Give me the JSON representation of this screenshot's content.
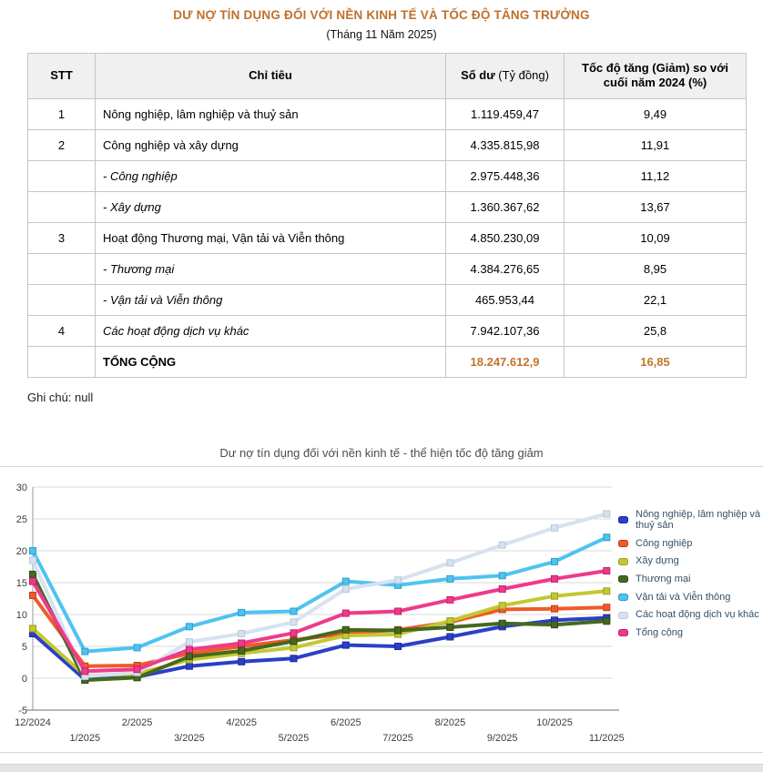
{
  "page": {
    "title": "DƯ NỢ TÍN DỤNG ĐỐI VỚI NỀN KINH TẾ VÀ TỐC ĐỘ TĂNG TRƯỞNG",
    "subtitle": "(Tháng 11 Năm 2025)",
    "note": "Ghi chú: null",
    "title_color": "#c0702b"
  },
  "table": {
    "headers": {
      "stt": "STT",
      "indicator": "Chỉ tiêu",
      "balance_bold": "Số dư",
      "balance_unit": "(Tỷ đồng)",
      "rate": "Tốc độ tăng (Giảm) so với cuối năm 2024 (%)"
    },
    "total_value_color": "#c1762b",
    "rows": [
      {
        "stt": "1",
        "label": "Nông nghiệp, lâm nghiệp và thuỷ sản",
        "balance": "1.119.459,47",
        "rate": "9,49",
        "style": "normal"
      },
      {
        "stt": "2",
        "label": "Công nghiệp và xây dựng",
        "balance": "4.335.815,98",
        "rate": "11,91",
        "style": "normal"
      },
      {
        "stt": "",
        "label": "- Công nghiệp",
        "balance": "2.975.448,36",
        "rate": "11,12",
        "style": "sub"
      },
      {
        "stt": "",
        "label": "- Xây dựng",
        "balance": "1.360.367,62",
        "rate": "13,67",
        "style": "sub"
      },
      {
        "stt": "3",
        "label": "Hoạt động Thương mại, Vận tải và Viễn thông",
        "balance": "4.850.230,09",
        "rate": "10,09",
        "style": "normal"
      },
      {
        "stt": "",
        "label": "- Thương mại",
        "balance": "4.384.276,65",
        "rate": "8,95",
        "style": "sub"
      },
      {
        "stt": "",
        "label": "- Vận tải và Viễn thông",
        "balance": "465.953,44",
        "rate": "22,1",
        "style": "sub"
      },
      {
        "stt": "4",
        "label": "Các hoạt động dịch vụ khác",
        "balance": "7.942.107,36",
        "rate": "25,8",
        "style": "sub"
      },
      {
        "stt": "",
        "label": "TỔNG CỘNG",
        "balance": "18.247.612,9",
        "rate": "16,85",
        "style": "total"
      }
    ]
  },
  "chart_data": {
    "type": "line",
    "title": "Dư nợ tín dụng đối với nền kinh tế - thể hiện tốc độ tăng giảm",
    "x": [
      "12/2024",
      "1/2025",
      "2/2025",
      "3/2025",
      "4/2025",
      "5/2025",
      "6/2025",
      "7/2025",
      "8/2025",
      "9/2025",
      "10/2025",
      "11/2025"
    ],
    "ylim": [
      -5,
      30
    ],
    "yticks": [
      30,
      25,
      20,
      15,
      10,
      5,
      0,
      -5
    ],
    "grid": true,
    "legend_position": "right",
    "series": [
      {
        "name": "Nông nghiệp, lâm nghiệp và thuỷ sản",
        "color": "#2b3fc8",
        "edge": "#1b2b96",
        "values": [
          7.0,
          -0.2,
          0.2,
          1.9,
          2.6,
          3.1,
          5.2,
          5.0,
          6.5,
          8.1,
          9.1,
          9.49
        ]
      },
      {
        "name": "Công nghiệp",
        "color": "#f05a28",
        "edge": "#c2401a",
        "values": [
          13.0,
          1.9,
          2.0,
          3.9,
          5.0,
          6.0,
          7.0,
          7.6,
          8.8,
          10.8,
          10.9,
          11.12
        ]
      },
      {
        "name": "Xây dựng",
        "color": "#c3c832",
        "edge": "#9aa01f",
        "values": [
          7.8,
          0.4,
          0.7,
          2.9,
          3.9,
          4.8,
          6.7,
          6.9,
          9.0,
          11.4,
          12.9,
          13.67
        ]
      },
      {
        "name": "Thương mại",
        "color": "#45691e",
        "edge": "#2f4a12",
        "values": [
          16.3,
          -0.3,
          0.1,
          3.4,
          4.3,
          5.8,
          7.6,
          7.5,
          8.0,
          8.6,
          8.4,
          8.95
        ]
      },
      {
        "name": "Vận tải và Viễn thông",
        "color": "#4fc3f0",
        "edge": "#2e9cc8",
        "values": [
          20.0,
          4.2,
          4.8,
          8.1,
          10.3,
          10.5,
          15.2,
          14.6,
          15.6,
          16.1,
          18.3,
          22.1
        ]
      },
      {
        "name": "Các hoạt động dịch vụ khác",
        "color": "#d6e2f0",
        "edge": "#b5c9de",
        "values": [
          18.5,
          0.3,
          0.9,
          5.7,
          7.0,
          8.8,
          14.0,
          15.4,
          18.1,
          20.9,
          23.6,
          25.8
        ]
      },
      {
        "name": "Tổng cộng",
        "color": "#ef3a8c",
        "edge": "#c21f6b",
        "values": [
          15.2,
          1.1,
          1.4,
          4.5,
          5.5,
          7.1,
          10.2,
          10.5,
          12.3,
          14.0,
          15.6,
          16.85
        ]
      }
    ]
  }
}
